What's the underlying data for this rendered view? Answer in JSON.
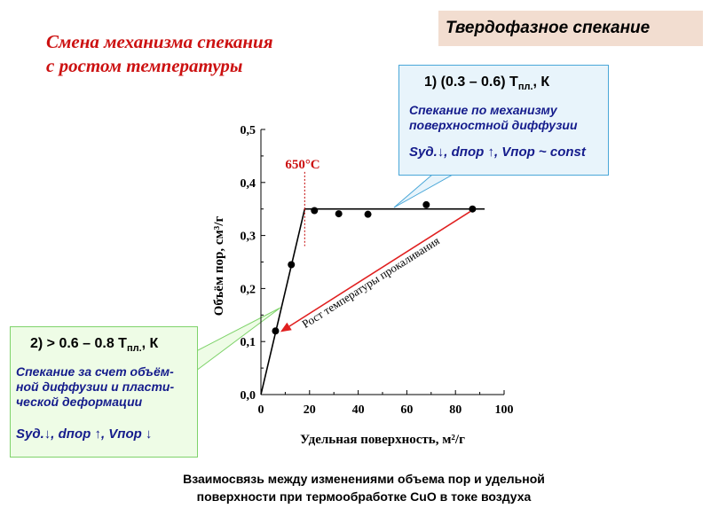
{
  "title_box": "Твердофазное спекание",
  "heading": [
    "Смена механизма спекания",
    "с  ростом  температуры"
  ],
  "callout_1": {
    "head": "1)  (0.3 – 0.6) Т",
    "head_sub": "пл.",
    "head_tail": ", К",
    "desc": [
      "Спекание  по  механизму",
      "поверхностной диффузии"
    ],
    "foot": "Sуд.↓,  dпор ↑,  Vпор ~ const"
  },
  "callout_2": {
    "head": "2)  > 0.6 – 0.8 Т",
    "head_sub": "пл.",
    "head_tail": ", К",
    "desc": [
      "Спекание за счет объём-",
      "ной диффузии и  пласти-",
      "ческой деформации"
    ],
    "foot": "Sуд.↓,  dпор ↑,  Vпор ↓"
  },
  "caption": [
    "Взаимосвязь между изменениями  объема пор и удельной",
    "поверхности при термообработке CuO в токе воздуха"
  ],
  "colors": {
    "heading": "#cc1111",
    "arrow": "#e02020",
    "callout_text": "#151c8c"
  },
  "chart_data": {
    "type": "scatter",
    "xlabel": "Удельная поверхность,  м²/г",
    "ylabel": "Объём пор,   см³/г",
    "xlim": [
      0,
      100
    ],
    "ylim": [
      0,
      0.5
    ],
    "x_ticks": [
      "0",
      "20",
      "40",
      "60",
      "80",
      "100"
    ],
    "y_ticks": [
      "0,0",
      "0,1",
      "0,2",
      "0,3",
      "0,4",
      "0,5"
    ],
    "points": [
      {
        "x": 6,
        "y": 0.12
      },
      {
        "x": 12.5,
        "y": 0.245
      },
      {
        "x": 22,
        "y": 0.347
      },
      {
        "x": 32,
        "y": 0.341
      },
      {
        "x": 44,
        "y": 0.34
      },
      {
        "x": 68,
        "y": 0.358
      },
      {
        "x": 87,
        "y": 0.35
      }
    ],
    "fit_lines": [
      [
        {
          "x": 0,
          "y": 0.0
        },
        {
          "x": 18,
          "y": 0.35
        }
      ],
      [
        {
          "x": 18,
          "y": 0.35
        },
        {
          "x": 92,
          "y": 0.35
        }
      ]
    ],
    "marker": {
      "label": "650°C",
      "x": 18
    },
    "arrow": {
      "label": "Рост температуры прокаливания",
      "from": {
        "x": 86,
        "y": 0.345
      },
      "to": {
        "x": 8,
        "y": 0.118
      }
    }
  }
}
